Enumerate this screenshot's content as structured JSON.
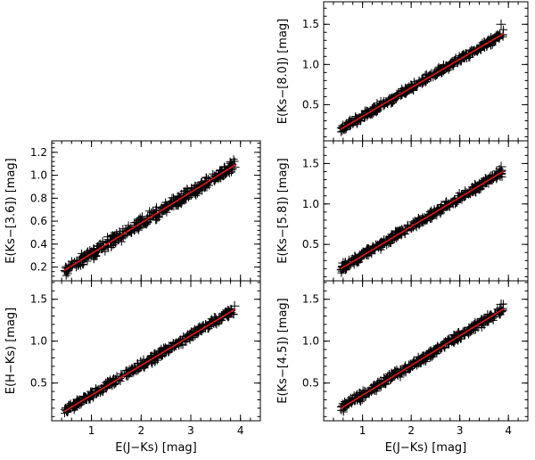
{
  "figure": {
    "panel_count": 5
  },
  "chart_data": [
    {
      "id": "ks36",
      "type": "scatter",
      "title": "",
      "xlabel": "",
      "ylabel": "E(Ks−[3.6]) [mag]",
      "xlim": [
        0.2,
        4.4
      ],
      "ylim": [
        0.08,
        1.3
      ],
      "xticks": [
        1,
        2,
        3,
        4
      ],
      "xtick_labels": [],
      "yticks": [
        0.2,
        0.4,
        0.6,
        0.8,
        1.0,
        1.2
      ],
      "ytick_labels": [
        "0.2",
        "0.4",
        "0.6",
        "0.8",
        "1.0",
        "1.2"
      ],
      "fit": {
        "slope": 0.267,
        "intercept": 0.05,
        "x_range": [
          0.45,
          3.9
        ]
      },
      "points_x": [
        0.5,
        0.62,
        0.75,
        0.88,
        1.0,
        1.12,
        1.25,
        1.38,
        1.5,
        1.62,
        1.75,
        1.88,
        2.0,
        2.12,
        2.25,
        2.38,
        2.5,
        2.62,
        2.75,
        2.88,
        3.0,
        3.12,
        3.25,
        3.38,
        3.5,
        3.62,
        3.75,
        3.88
      ],
      "points_y": [
        0.19,
        0.22,
        0.25,
        0.28,
        0.33,
        0.35,
        0.38,
        0.42,
        0.45,
        0.48,
        0.52,
        0.55,
        0.59,
        0.61,
        0.65,
        0.69,
        0.71,
        0.75,
        0.78,
        0.82,
        0.85,
        0.88,
        0.91,
        0.95,
        0.98,
        1.01,
        1.05,
        1.07
      ]
    },
    {
      "id": "hks",
      "type": "scatter",
      "title": "",
      "xlabel": "E(J−Ks) [mag]",
      "ylabel": "E(H−Ks) [mag]",
      "xlim": [
        0.2,
        4.4
      ],
      "ylim": [
        0.05,
        1.72
      ],
      "xticks": [
        1,
        2,
        3,
        4
      ],
      "xtick_labels": [
        "1",
        "2",
        "3",
        "4"
      ],
      "yticks": [
        0.5,
        1.0,
        1.5
      ],
      "ytick_labels": [
        "0.5",
        "1.0",
        "1.5"
      ],
      "fit": {
        "slope": 0.355,
        "intercept": 0.0,
        "x_range": [
          0.45,
          3.9
        ]
      },
      "points_x": [
        0.5,
        0.62,
        0.75,
        0.88,
        1.0,
        1.12,
        1.25,
        1.38,
        1.5,
        1.62,
        1.75,
        1.88,
        2.0,
        2.12,
        2.25,
        2.38,
        2.5,
        2.62,
        2.75,
        2.88,
        3.0,
        3.12,
        3.25,
        3.38,
        3.5,
        3.62,
        3.75,
        3.88
      ],
      "points_y": [
        0.17,
        0.22,
        0.27,
        0.31,
        0.36,
        0.4,
        0.44,
        0.49,
        0.53,
        0.58,
        0.62,
        0.67,
        0.71,
        0.75,
        0.8,
        0.85,
        0.89,
        0.93,
        0.98,
        1.02,
        1.07,
        1.11,
        1.15,
        1.2,
        1.24,
        1.29,
        1.33,
        1.42
      ]
    },
    {
      "id": "ks80",
      "type": "scatter",
      "title": "",
      "xlabel": "",
      "ylabel": "E(Ks−[8.0]) [mag]",
      "xlim": [
        0.2,
        4.4
      ],
      "ylim": [
        0.05,
        1.78
      ],
      "xticks": [
        1,
        2,
        3,
        4
      ],
      "xtick_labels": [],
      "yticks": [
        0.5,
        1.0,
        1.5
      ],
      "ytick_labels": [
        "0.5",
        "1.0",
        "1.5"
      ],
      "fit": {
        "slope": 0.355,
        "intercept": 0.0,
        "x_range": [
          0.55,
          3.9
        ]
      },
      "points_x": [
        0.6,
        0.72,
        0.85,
        0.98,
        1.1,
        1.22,
        1.35,
        1.48,
        1.6,
        1.72,
        1.85,
        1.98,
        2.1,
        2.22,
        2.35,
        2.48,
        2.6,
        2.72,
        2.85,
        2.98,
        3.1,
        3.22,
        3.35,
        3.48,
        3.6,
        3.72,
        3.85
      ],
      "points_y": [
        0.24,
        0.28,
        0.33,
        0.36,
        0.41,
        0.45,
        0.49,
        0.53,
        0.57,
        0.61,
        0.66,
        0.7,
        0.74,
        0.79,
        0.84,
        0.88,
        0.92,
        0.96,
        1.01,
        1.06,
        1.1,
        1.14,
        1.19,
        1.24,
        1.28,
        1.33,
        1.5
      ]
    },
    {
      "id": "ks58",
      "type": "scatter",
      "title": "",
      "xlabel": "",
      "ylabel": "E(Ks−[5.8]) [mag]",
      "xlim": [
        0.2,
        4.4
      ],
      "ylim": [
        0.05,
        1.78
      ],
      "xticks": [
        1,
        2,
        3,
        4
      ],
      "xtick_labels": [],
      "yticks": [
        0.5,
        1.0,
        1.5
      ],
      "ytick_labels": [
        "0.5",
        "1.0",
        "1.5"
      ],
      "fit": {
        "slope": 0.36,
        "intercept": 0.0,
        "x_range": [
          0.55,
          3.9
        ]
      },
      "points_x": [
        0.6,
        0.72,
        0.85,
        0.98,
        1.1,
        1.22,
        1.35,
        1.48,
        1.6,
        1.72,
        1.85,
        1.98,
        2.1,
        2.22,
        2.35,
        2.48,
        2.6,
        2.72,
        2.85,
        2.98,
        3.1,
        3.22,
        3.35,
        3.48,
        3.6,
        3.72,
        3.85
      ],
      "points_y": [
        0.27,
        0.3,
        0.34,
        0.38,
        0.42,
        0.46,
        0.5,
        0.54,
        0.59,
        0.63,
        0.67,
        0.71,
        0.76,
        0.8,
        0.85,
        0.89,
        0.94,
        0.98,
        1.02,
        1.07,
        1.11,
        1.16,
        1.2,
        1.25,
        1.3,
        1.34,
        1.46
      ]
    },
    {
      "id": "ks45",
      "type": "scatter",
      "title": "",
      "xlabel": "E(J−Ks) [mag]",
      "ylabel": "E(Ks−[4.5]) [mag]",
      "xlim": [
        0.2,
        4.4
      ],
      "ylim": [
        0.05,
        1.72
      ],
      "xticks": [
        1,
        2,
        3,
        4
      ],
      "xtick_labels": [
        "1",
        "2",
        "3",
        "4"
      ],
      "yticks": [
        0.5,
        1.0,
        1.5
      ],
      "ytick_labels": [
        "0.5",
        "1.0",
        "1.5"
      ],
      "fit": {
        "slope": 0.355,
        "intercept": 0.0,
        "x_range": [
          0.55,
          3.9
        ]
      },
      "points_x": [
        0.6,
        0.72,
        0.85,
        0.98,
        1.1,
        1.22,
        1.35,
        1.48,
        1.6,
        1.72,
        1.85,
        1.98,
        2.1,
        2.22,
        2.35,
        2.48,
        2.6,
        2.72,
        2.85,
        2.98,
        3.1,
        3.22,
        3.35,
        3.48,
        3.6,
        3.72,
        3.85
      ],
      "points_y": [
        0.23,
        0.27,
        0.31,
        0.35,
        0.39,
        0.44,
        0.48,
        0.52,
        0.57,
        0.61,
        0.66,
        0.7,
        0.75,
        0.79,
        0.83,
        0.88,
        0.92,
        0.97,
        1.01,
        1.05,
        1.1,
        1.14,
        1.19,
        1.23,
        1.28,
        1.32,
        1.44
      ]
    }
  ]
}
